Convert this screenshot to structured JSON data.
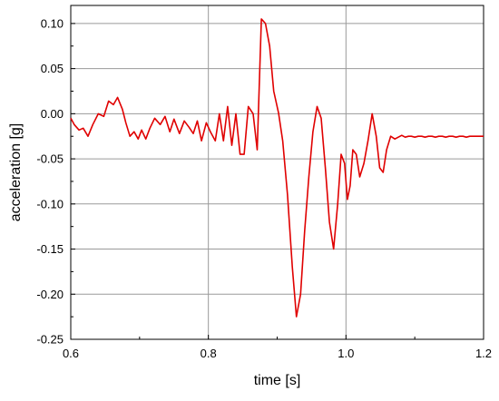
{
  "chart_data": {
    "type": "line",
    "xlabel": "time [s]",
    "ylabel": "acceleration [g]",
    "xlim": [
      0.6,
      1.2
    ],
    "ylim": [
      -0.25,
      0.12
    ],
    "x_ticks": [
      0.6,
      0.8,
      1.0,
      1.2
    ],
    "x_tick_labels": [
      "0.6",
      "0.8",
      "1.0",
      "1.2"
    ],
    "y_ticks": [
      -0.25,
      -0.2,
      -0.15,
      -0.1,
      -0.05,
      0.0,
      0.05,
      0.1
    ],
    "y_tick_labels": [
      "-0.25",
      "-0.20",
      "-0.15",
      "-0.10",
      "-0.05",
      "0.00",
      "0.05",
      "0.10"
    ],
    "grid": true,
    "legend": "none",
    "line_color": "#e00000",
    "series": [
      {
        "x": [
          0.6,
          0.605,
          0.612,
          0.618,
          0.625,
          0.632,
          0.64,
          0.648,
          0.655,
          0.662,
          0.668,
          0.675,
          0.68,
          0.686,
          0.692,
          0.698,
          0.703,
          0.709,
          0.715,
          0.722,
          0.73,
          0.737,
          0.744,
          0.75,
          0.758,
          0.765,
          0.772,
          0.778,
          0.784,
          0.79,
          0.797,
          0.803,
          0.81,
          0.816,
          0.822,
          0.828,
          0.834,
          0.84,
          0.846,
          0.852,
          0.858,
          0.865,
          0.871,
          0.877,
          0.883,
          0.889,
          0.895,
          0.902,
          0.908,
          0.915,
          0.922,
          0.928,
          0.934,
          0.94,
          0.946,
          0.952,
          0.958,
          0.964,
          0.97,
          0.976,
          0.982,
          0.988,
          0.993,
          0.998,
          1.002,
          1.006,
          1.01,
          1.015,
          1.02,
          1.026,
          1.032,
          1.038,
          1.044,
          1.049,
          1.054,
          1.059,
          1.065,
          1.071,
          1.076,
          1.081,
          1.086,
          1.091,
          1.095,
          1.1,
          1.105,
          1.11,
          1.115,
          1.12,
          1.125,
          1.13,
          1.135,
          1.14,
          1.145,
          1.15,
          1.155,
          1.16,
          1.165,
          1.17,
          1.175,
          1.18,
          1.185,
          1.19,
          1.195,
          1.2
        ],
        "y": [
          -0.005,
          -0.012,
          -0.018,
          -0.016,
          -0.025,
          -0.012,
          0.0,
          -0.003,
          0.014,
          0.01,
          0.018,
          0.005,
          -0.01,
          -0.025,
          -0.02,
          -0.028,
          -0.018,
          -0.028,
          -0.016,
          -0.005,
          -0.012,
          -0.003,
          -0.02,
          -0.006,
          -0.022,
          -0.008,
          -0.015,
          -0.022,
          -0.008,
          -0.03,
          -0.01,
          -0.02,
          -0.03,
          0.0,
          -0.03,
          0.008,
          -0.035,
          0.0,
          -0.045,
          -0.045,
          0.008,
          0.0,
          -0.04,
          0.105,
          0.1,
          0.075,
          0.025,
          0.001,
          -0.03,
          -0.09,
          -0.17,
          -0.225,
          -0.2,
          -0.13,
          -0.07,
          -0.02,
          0.008,
          -0.005,
          -0.06,
          -0.12,
          -0.15,
          -0.1,
          -0.045,
          -0.055,
          -0.095,
          -0.08,
          -0.04,
          -0.045,
          -0.07,
          -0.055,
          -0.03,
          0.0,
          -0.025,
          -0.06,
          -0.065,
          -0.04,
          -0.025,
          -0.028,
          -0.026,
          -0.024,
          -0.026,
          -0.025,
          -0.025,
          -0.026,
          -0.025,
          -0.025,
          -0.026,
          -0.025,
          -0.025,
          -0.026,
          -0.025,
          -0.025,
          -0.026,
          -0.025,
          -0.025,
          -0.026,
          -0.025,
          -0.025,
          -0.026,
          -0.025,
          -0.025,
          -0.025,
          -0.025,
          -0.025
        ]
      }
    ]
  }
}
